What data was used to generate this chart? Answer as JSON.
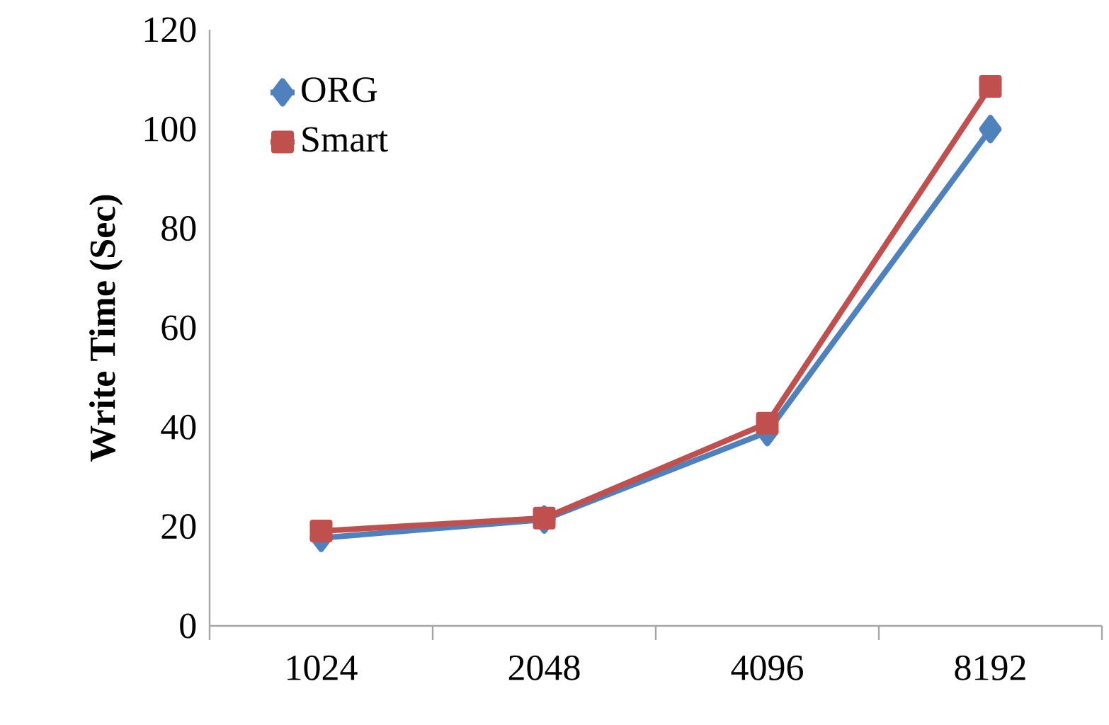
{
  "chart_data": {
    "type": "line",
    "ylabel": "Write Time (Sec)",
    "categories": [
      "1024",
      "2048",
      "4096",
      "8192"
    ],
    "series": [
      {
        "name": "ORG",
        "color": "#4f81bd",
        "marker": "diamond",
        "values": [
          17.7,
          21.4,
          39,
          100
        ]
      },
      {
        "name": "Smart",
        "color": "#c0504d",
        "marker": "square",
        "values": [
          19.1,
          21.7,
          40.8,
          108.6
        ]
      }
    ],
    "ylim": [
      0,
      120
    ],
    "yticks": [
      0,
      20,
      40,
      60,
      80,
      100,
      120
    ],
    "grid": false,
    "legend": "top left",
    "line_style": "solid"
  }
}
